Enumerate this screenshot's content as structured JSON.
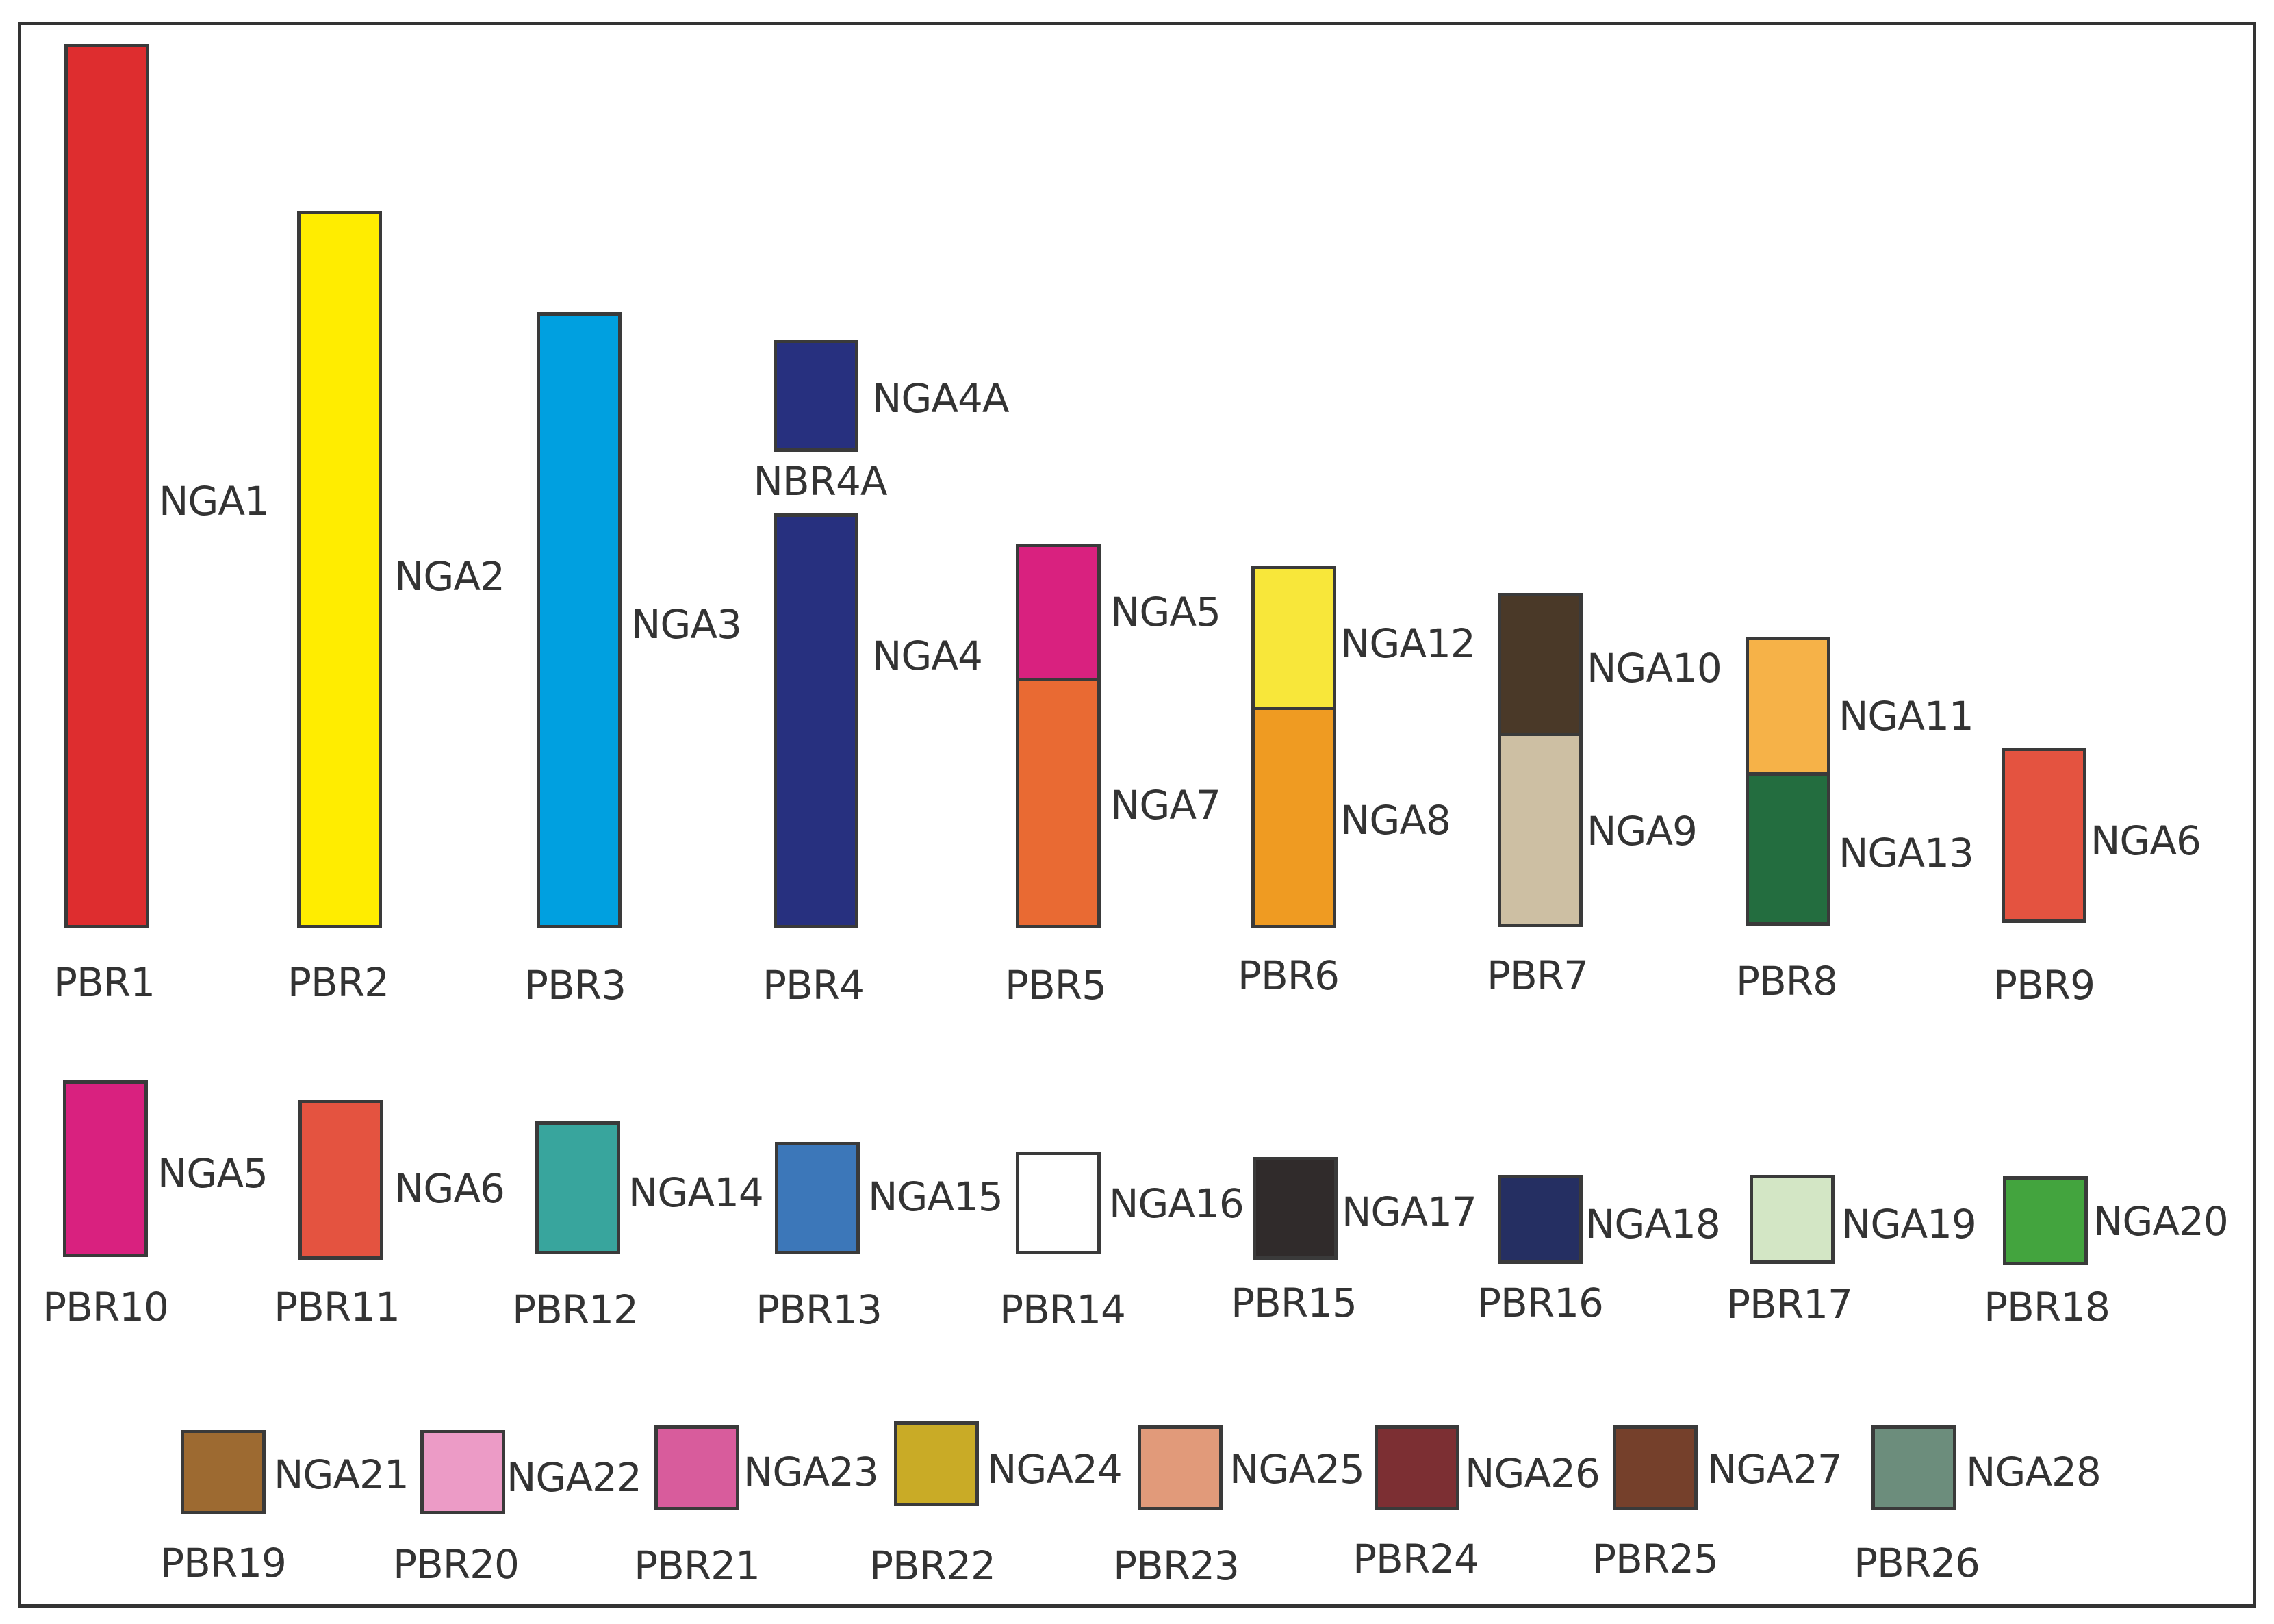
{
  "diagram": {
    "kind": "chromosome color legend",
    "rows": [
      {
        "row": "top",
        "items": [
          {
            "pbr": "PBR1",
            "segments": [
              {
                "nga": "NGA1",
                "color": "#de2d2f"
              }
            ]
          },
          {
            "pbr": "PBR2",
            "segments": [
              {
                "nga": "NGA2",
                "color": "#ffed00"
              }
            ]
          },
          {
            "pbr": "PBR3",
            "segments": [
              {
                "nga": "NGA3",
                "color": "#00a0e0"
              }
            ]
          },
          {
            "pbr": "PBR4",
            "segments": [
              {
                "nga": "NGA4",
                "color": "#27307f"
              }
            ]
          },
          {
            "pbr": "PBR5",
            "segments": [
              {
                "nga": "NGA5",
                "color": "#d9217f"
              },
              {
                "nga": "NGA7",
                "color": "#e96a33"
              }
            ]
          },
          {
            "pbr": "PBR6",
            "segments": [
              {
                "nga": "NGA12",
                "color": "#f8e73a"
              },
              {
                "nga": "NGA8",
                "color": "#ef9b22"
              }
            ]
          },
          {
            "pbr": "PBR7",
            "segments": [
              {
                "nga": "NGA10",
                "color": "#4a3928"
              },
              {
                "nga": "NGA9",
                "color": "#cdbfa3"
              }
            ]
          },
          {
            "pbr": "PBR8",
            "segments": [
              {
                "nga": "NGA11",
                "color": "#f6b248"
              },
              {
                "nga": "NGA13",
                "color": "#236d3f"
              }
            ]
          },
          {
            "pbr": "PBR9",
            "segments": [
              {
                "nga": "NGA6",
                "color": "#e45340"
              }
            ]
          }
        ],
        "extra": {
          "pbr": "NBR4A",
          "nga": "NGA4A",
          "color": "#27307f"
        }
      },
      {
        "row": "middle",
        "items": [
          {
            "pbr": "PBR10",
            "nga": "NGA5",
            "color": "#d9217f"
          },
          {
            "pbr": "PBR11",
            "nga": "NGA6",
            "color": "#e45340"
          },
          {
            "pbr": "PBR12",
            "nga": "NGA14",
            "color": "#38a59d"
          },
          {
            "pbr": "PBR13",
            "nga": "NGA15",
            "color": "#3c77b9"
          },
          {
            "pbr": "PBR14",
            "nga": "NGA16",
            "color": "#ffffff"
          },
          {
            "pbr": "PBR15",
            "nga": "NGA17",
            "color": "#302b2b"
          },
          {
            "pbr": "PBR16",
            "nga": "NGA18",
            "color": "#252f62"
          },
          {
            "pbr": "PBR17",
            "nga": "NGA19",
            "color": "#d3e6c5"
          },
          {
            "pbr": "PBR18",
            "nga": "NGA20",
            "color": "#43a43e"
          }
        ]
      },
      {
        "row": "bottom",
        "items": [
          {
            "pbr": "PBR19",
            "nga": "NGA21",
            "color": "#9d6a31"
          },
          {
            "pbr": "PBR20",
            "nga": "NGA22",
            "color": "#ec9bc6"
          },
          {
            "pbr": "PBR21",
            "nga": "NGA23",
            "color": "#d85c9c"
          },
          {
            "pbr": "PBR22",
            "nga": "NGA24",
            "color": "#c9ab26"
          },
          {
            "pbr": "PBR23",
            "nga": "NGA25",
            "color": "#e19a7a"
          },
          {
            "pbr": "PBR24",
            "nga": "NGA26",
            "color": "#7c2f33"
          },
          {
            "pbr": "PBR25",
            "nga": "NGA27",
            "color": "#75402b"
          },
          {
            "pbr": "PBR26",
            "nga": "NGA28",
            "color": "#6c8d7c"
          }
        ]
      }
    ]
  }
}
